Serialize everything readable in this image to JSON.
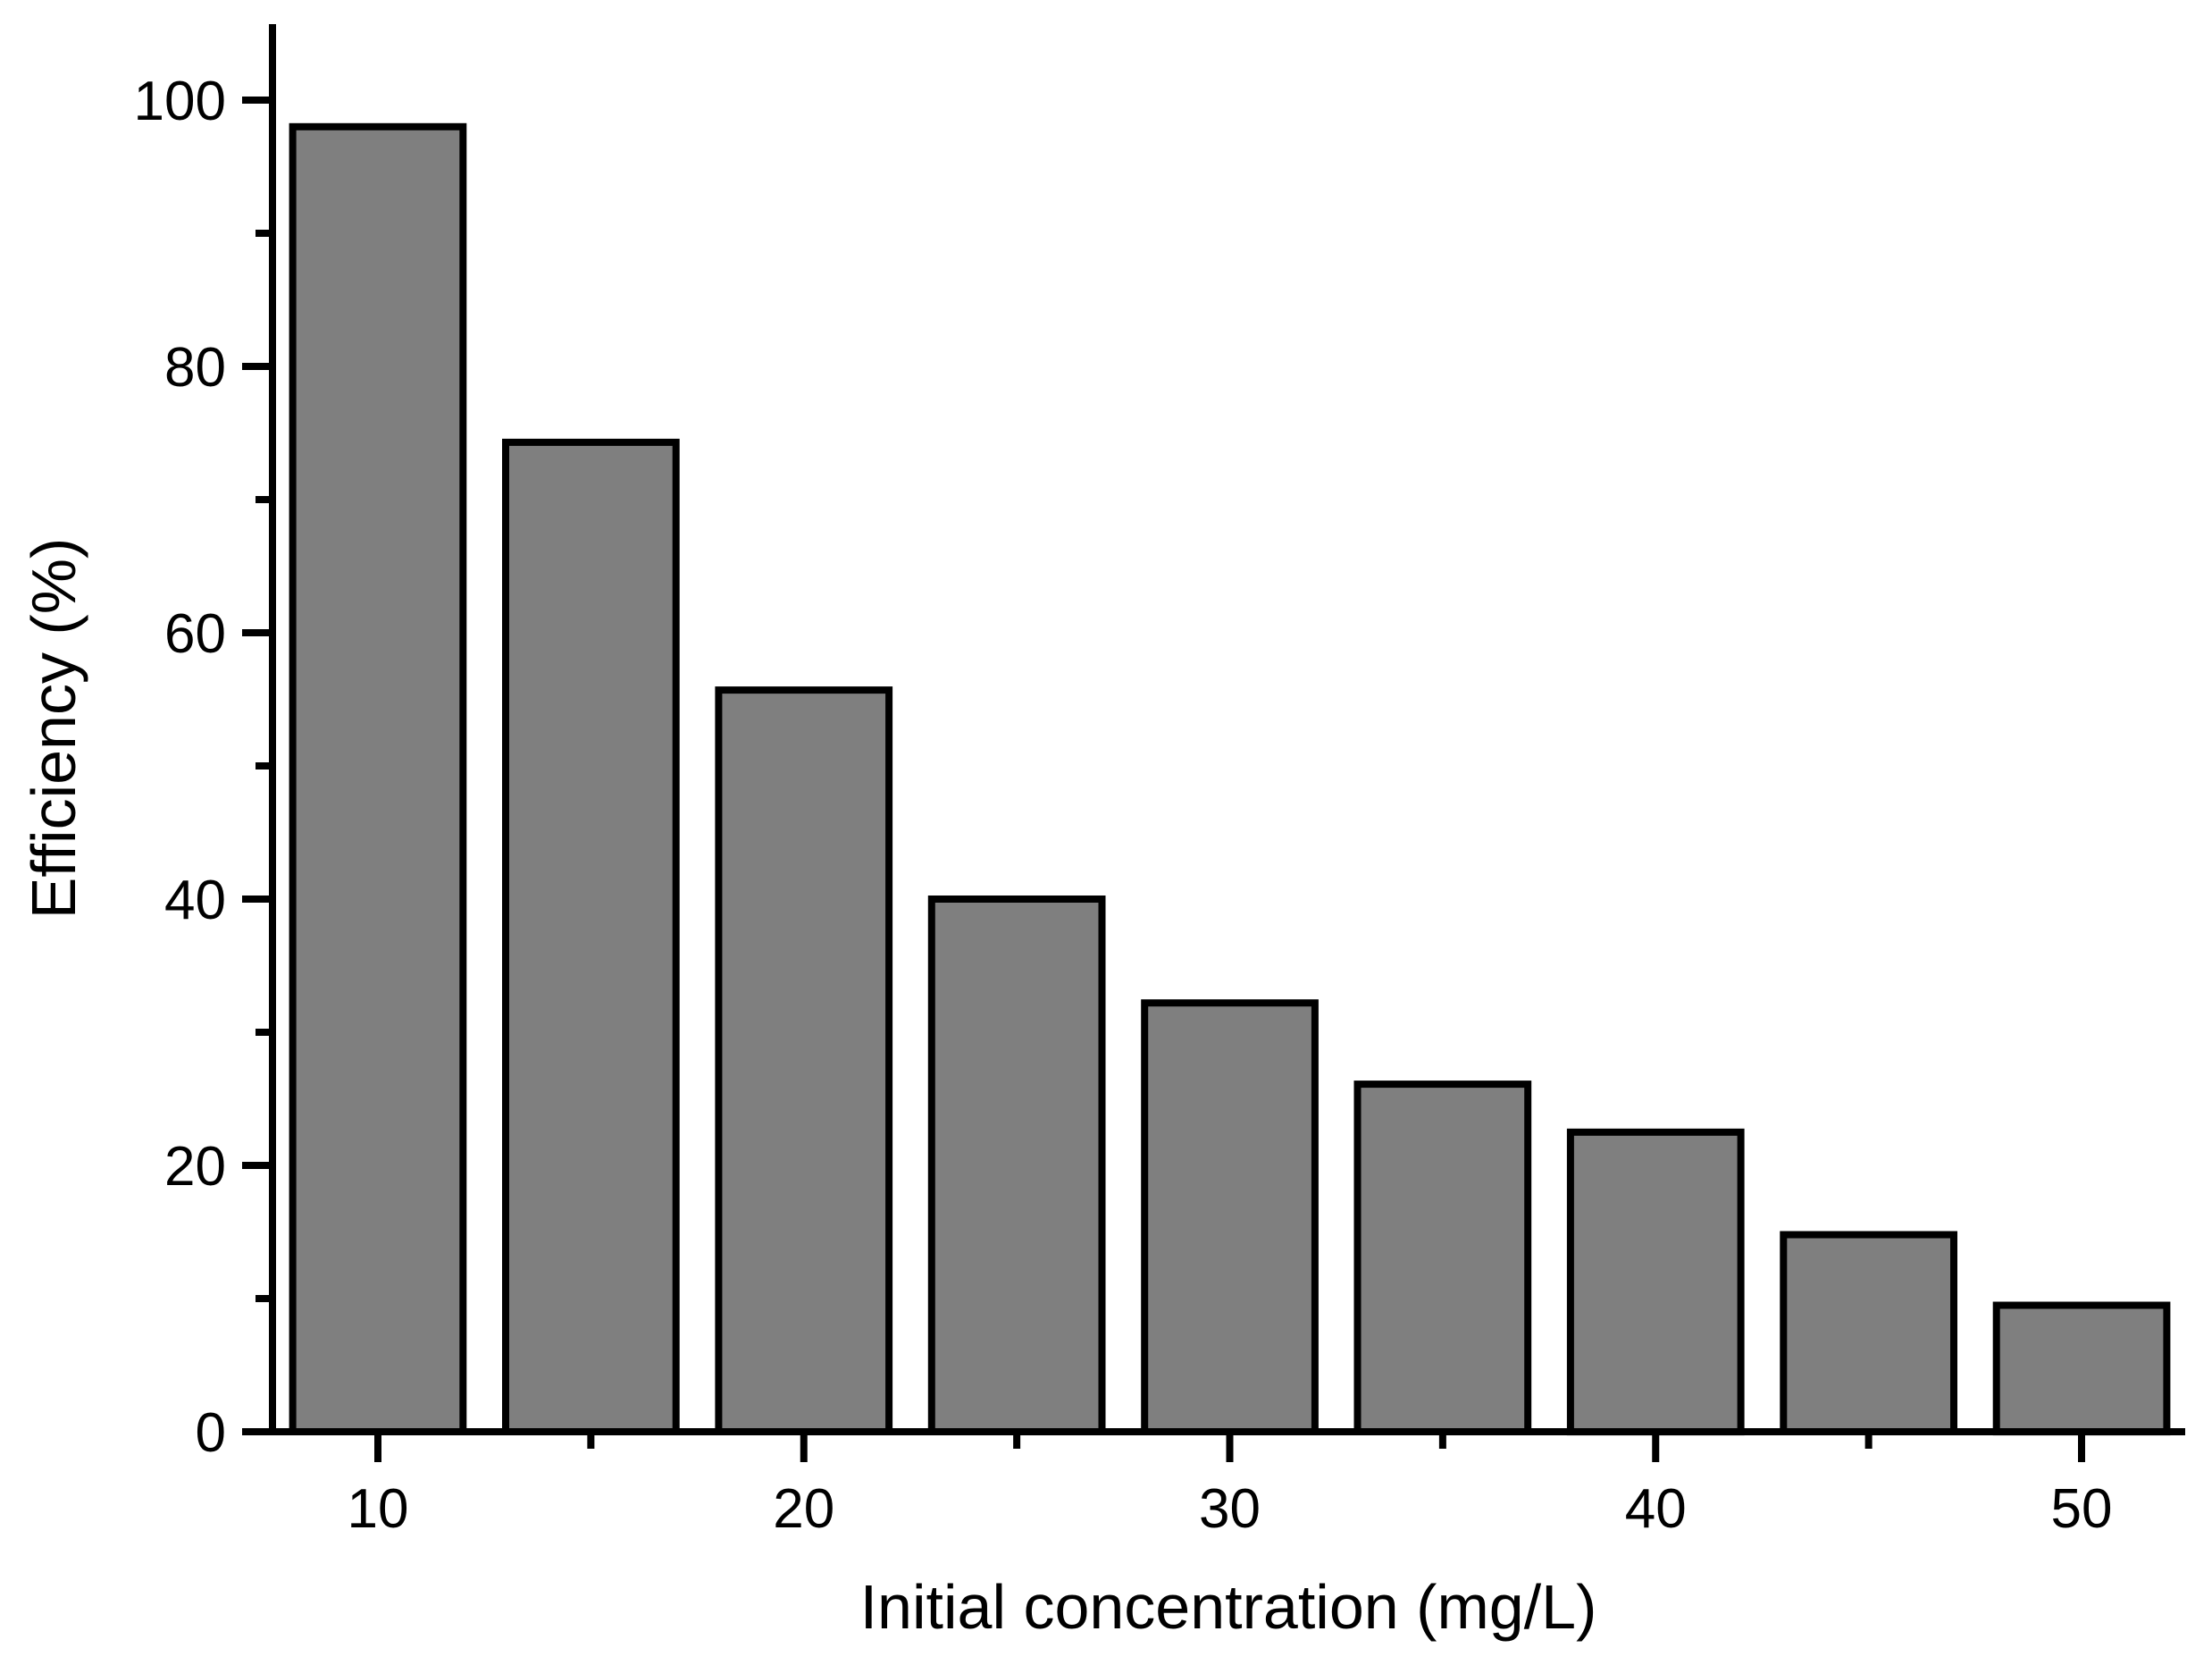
{
  "chart_data": {
    "type": "bar",
    "title": "",
    "xlabel": "Initial concentration (mg/L)",
    "ylabel": "Efficiency (%)",
    "categories": [
      10,
      15,
      20,
      25,
      30,
      35,
      40,
      45,
      50
    ],
    "values": [
      98.0,
      74.3,
      55.7,
      40.0,
      32.2,
      26.1,
      22.5,
      14.8,
      9.5
    ],
    "series_name": "Efficiency",
    "xlim": [
      7.5,
      52.5
    ],
    "ylim": [
      0,
      105.5
    ],
    "x_major_ticks": [
      10,
      20,
      30,
      40,
      50
    ],
    "x_minor_ticks": [
      15,
      25,
      35,
      45
    ],
    "y_major_ticks": [
      0,
      20,
      40,
      60,
      80,
      100
    ],
    "y_minor_ticks": [
      10,
      30,
      50,
      70,
      90
    ],
    "bar_width_units": 4,
    "bar_fill": "#7F7F7F",
    "bar_stroke": "#000000",
    "axis_color": "#000000",
    "background": "#FFFFFF",
    "grid": false,
    "legend": false,
    "tick_direction": "out"
  }
}
